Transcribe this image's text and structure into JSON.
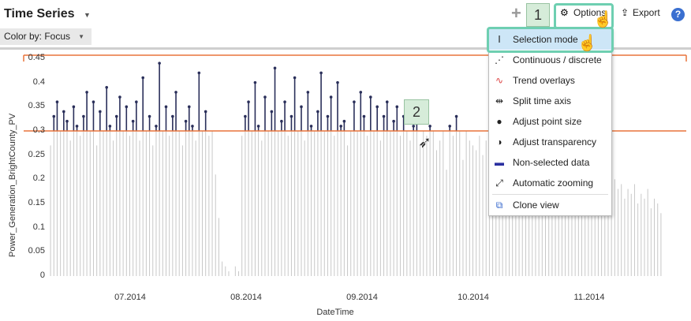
{
  "header": {
    "title": "Time Series",
    "options_label": "Options",
    "export_label": "Export"
  },
  "color_by": {
    "label": "Color by: Focus"
  },
  "badges": [
    "1",
    "2"
  ],
  "menu": {
    "items": [
      {
        "label": "Selection mode",
        "icon": "selection-mode-icon"
      },
      {
        "label": "Continuous / discrete",
        "icon": "continuous-discrete-icon"
      },
      {
        "label": "Trend overlays",
        "icon": "trend-overlays-icon"
      },
      {
        "label": "Split time axis",
        "icon": "split-time-axis-icon"
      },
      {
        "label": "Adjust point size",
        "icon": "point-size-icon"
      },
      {
        "label": "Adjust transparency",
        "icon": "transparency-icon"
      },
      {
        "label": "Non-selected data",
        "icon": "non-selected-data-icon"
      },
      {
        "label": "Automatic zooming",
        "icon": "automatic-zooming-icon"
      },
      {
        "label": "Clone view",
        "icon": "clone-view-icon"
      }
    ]
  },
  "colors": {
    "selection_line": "#e8743b",
    "selected_series": "#2a2f5a",
    "unselected_series": "#c8c8c8",
    "highlight": "#6ecfb1",
    "badge_bg": "#d6ecd9"
  },
  "chart_data": {
    "type": "line",
    "ylabel": "Power_Generation_BrightCounty_PV",
    "xlabel": "DateTime",
    "y_ticks": [
      "0.45",
      "0.4",
      "0.35",
      "0.3",
      "0.25",
      "0.2",
      "0.15",
      "0.1",
      "0.05",
      "0"
    ],
    "x_ticks": [
      "07.2014",
      "08.2014",
      "09.2014",
      "10.2014",
      "11.2014"
    ],
    "ylim": [
      0,
      0.45
    ],
    "selection_threshold": 0.3,
    "series": [
      {
        "values": [
          0.27,
          0.33,
          0.36,
          0.3,
          0.34,
          0.32,
          0.28,
          0.35,
          0.31,
          0.29,
          0.33,
          0.38,
          0.3,
          0.36,
          0.27,
          0.34,
          0.3,
          0.39,
          0.31,
          0.28,
          0.33,
          0.37,
          0.3,
          0.35,
          0.29,
          0.32,
          0.36,
          0.28,
          0.41,
          0.3,
          0.33,
          0.27,
          0.31,
          0.44,
          0.3,
          0.35,
          0.29,
          0.33,
          0.38,
          0.3,
          0.27,
          0.32,
          0.35,
          0.31,
          0.28,
          0.42,
          0.3,
          0.34,
          0.29,
          0.3,
          0.21,
          0.12,
          0.03,
          0.02,
          0.01,
          0.0,
          0.02,
          0.01,
          0.29,
          0.33,
          0.36,
          0.3,
          0.4,
          0.31,
          0.28,
          0.37,
          0.3,
          0.34,
          0.43,
          0.3,
          0.32,
          0.36,
          0.29,
          0.33,
          0.41,
          0.3,
          0.35,
          0.28,
          0.38,
          0.31,
          0.3,
          0.34,
          0.42,
          0.3,
          0.33,
          0.37,
          0.29,
          0.4,
          0.31,
          0.32,
          0.27,
          0.3,
          0.36,
          0.3,
          0.38,
          0.33,
          0.29,
          0.37,
          0.3,
          0.35,
          0.28,
          0.33,
          0.36,
          0.3,
          0.32,
          0.35,
          0.29,
          0.33,
          0.3,
          0.28,
          0.31,
          0.32,
          0.27,
          0.3,
          0.29,
          0.31,
          0.3,
          0.26,
          0.28,
          0.3,
          0.22,
          0.31,
          0.29,
          0.33,
          0.3,
          0.24,
          0.3,
          0.28,
          0.27,
          0.26,
          0.29,
          0.25,
          0.28,
          0.27,
          0.3,
          0.29,
          0.28,
          0.26,
          0.27,
          0.25,
          0.28,
          0.24,
          0.27,
          0.26,
          0.25,
          0.23,
          0.27,
          0.24,
          0.25,
          0.22,
          0.26,
          0.23,
          0.24,
          0.25,
          0.21,
          0.24,
          0.23,
          0.22,
          0.2,
          0.23,
          0.21,
          0.22,
          0.19,
          0.21,
          0.2,
          0.22,
          0.18,
          0.2,
          0.21,
          0.19,
          0.17,
          0.2,
          0.18,
          0.19,
          0.16,
          0.18,
          0.17,
          0.19,
          0.15,
          0.17,
          0.16,
          0.18,
          0.14,
          0.16,
          0.15,
          0.13
        ]
      }
    ]
  }
}
